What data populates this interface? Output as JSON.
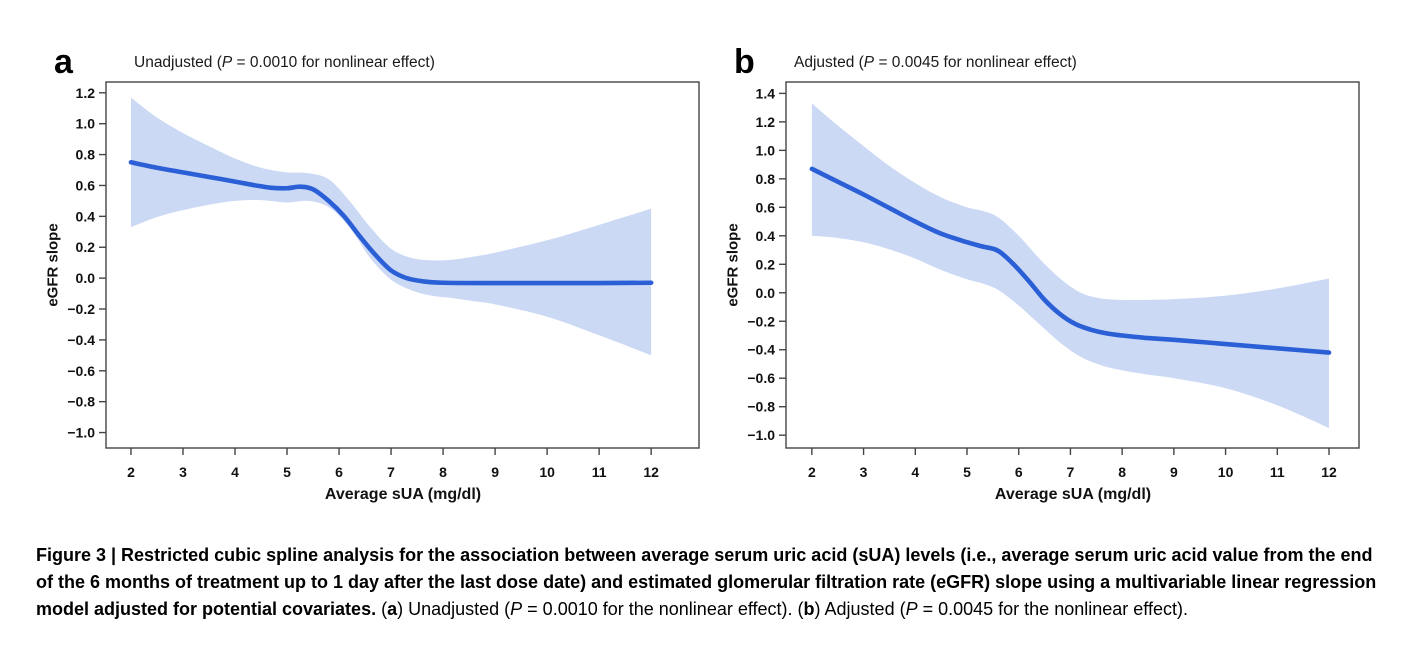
{
  "figure": {
    "panels": [
      {
        "letter": "a",
        "title_segments": [
          {
            "t": "Unadjusted ("
          },
          {
            "t": "P",
            "i": true
          },
          {
            "t": " = 0.0010 for nonlinear effect)"
          }
        ]
      },
      {
        "letter": "b",
        "title_segments": [
          {
            "t": "Adjusted ("
          },
          {
            "t": "P",
            "i": true
          },
          {
            "t": " = 0.0045 for nonlinear effect)"
          }
        ]
      }
    ],
    "caption_segments": [
      {
        "t": "Figure 3 | Restricted cubic spline analysis for the association between average serum uric acid (sUA) levels (i.e., average serum uric acid value from the end of the 6 months of treatment up to 1 day after the last dose date) and estimated glomerular filtration rate (eGFR) slope using a multivariable linear regression model adjusted for potential covariates.",
        "b": true
      },
      {
        "t": " ("
      },
      {
        "t": "a",
        "b": true
      },
      {
        "t": ") Unadjusted ("
      },
      {
        "t": "P",
        "i": true
      },
      {
        "t": " = 0.0010 for the nonlinear effect). ("
      },
      {
        "t": "b",
        "b": true
      },
      {
        "t": ") Adjusted ("
      },
      {
        "t": "P",
        "i": true
      },
      {
        "t": " = 0.0045 for the nonlinear effect)."
      }
    ]
  },
  "chart_data": [
    {
      "type": "line",
      "panel": "a",
      "title": "Unadjusted (P = 0.0010 for nonlinear effect)",
      "xlabel": "Average sUA (mg/dl)",
      "ylabel": "eGFR slope",
      "grid": false,
      "legend_position": "none",
      "xlim": [
        1.52,
        12.92
      ],
      "ylim": [
        -1.1,
        1.27
      ],
      "xticks": [
        2,
        3,
        4,
        5,
        6,
        7,
        8,
        9,
        10,
        11,
        12
      ],
      "xtick_labels": [
        "2",
        "3",
        "4",
        "5",
        "6",
        "7",
        "8",
        "9",
        "10",
        "11",
        "12"
      ],
      "yticks": [
        1.2,
        1.0,
        0.8,
        0.6,
        0.4,
        0.2,
        0.0,
        -0.2,
        -0.4,
        -0.6,
        -0.8,
        -1.0
      ],
      "ytick_labels": [
        "1.2",
        "1.0",
        "0.8",
        "0.6",
        "0.4",
        "0.2",
        "0.0",
        "−0.2",
        "−0.4",
        "−0.6",
        "−0.8",
        "−1.0"
      ],
      "series": [
        {
          "name": "restricted cubic spline estimate",
          "x": [
            2,
            2.5,
            3,
            3.5,
            4,
            4.4,
            4.7,
            5.0,
            5.25,
            5.5,
            5.8,
            6.1,
            6.4,
            6.7,
            7.0,
            7.3,
            7.6,
            8,
            9,
            10,
            11,
            12
          ],
          "y": [
            0.75,
            0.715,
            0.685,
            0.655,
            0.625,
            0.6,
            0.585,
            0.582,
            0.592,
            0.575,
            0.5,
            0.4,
            0.27,
            0.15,
            0.05,
            0.0,
            -0.02,
            -0.03,
            -0.032,
            -0.032,
            -0.032,
            -0.03
          ]
        }
      ],
      "band": {
        "name": "95% confidence interval",
        "x": [
          2,
          2.5,
          3,
          3.5,
          4,
          4.5,
          5,
          5.4,
          5.8,
          6.2,
          6.6,
          7,
          7.4,
          7.8,
          8.2,
          8.6,
          9,
          10,
          11,
          12
        ],
        "upper": [
          1.17,
          1.04,
          0.94,
          0.855,
          0.775,
          0.715,
          0.685,
          0.68,
          0.64,
          0.5,
          0.33,
          0.19,
          0.13,
          0.115,
          0.12,
          0.14,
          0.165,
          0.245,
          0.345,
          0.45
        ],
        "lower": [
          0.33,
          0.395,
          0.44,
          0.475,
          0.5,
          0.505,
          0.49,
          0.5,
          0.46,
          0.33,
          0.13,
          -0.01,
          -0.08,
          -0.115,
          -0.13,
          -0.15,
          -0.17,
          -0.25,
          -0.37,
          -0.5
        ]
      },
      "colors": {
        "line": "#2b5fd6",
        "band": "#ccd9f5",
        "axis": "#444444"
      }
    },
    {
      "type": "line",
      "panel": "b",
      "title": "Adjusted (P = 0.0045 for nonlinear effect)",
      "xlabel": "Average sUA (mg/dl)",
      "ylabel": "eGFR slope",
      "grid": false,
      "legend_position": "none",
      "xlim": [
        1.5,
        12.58
      ],
      "ylim": [
        -1.09,
        1.48
      ],
      "xticks": [
        2,
        3,
        4,
        5,
        6,
        7,
        8,
        9,
        10,
        11,
        12
      ],
      "xtick_labels": [
        "2",
        "3",
        "4",
        "5",
        "6",
        "7",
        "8",
        "9",
        "10",
        "11",
        "12"
      ],
      "yticks": [
        1.4,
        1.2,
        1.0,
        0.8,
        0.6,
        0.4,
        0.2,
        0.0,
        -0.2,
        -0.4,
        -0.6,
        -0.8,
        -1.0
      ],
      "ytick_labels": [
        "1.4",
        "1.2",
        "1.0",
        "0.8",
        "0.6",
        "0.4",
        "0.2",
        "0.0",
        "−0.2",
        "−0.4",
        "−0.6",
        "−0.8",
        "−1.0"
      ],
      "series": [
        {
          "name": "restricted cubic spline estimate",
          "x": [
            2,
            2.5,
            3,
            3.5,
            4,
            4.5,
            5,
            5.3,
            5.6,
            5.9,
            6.2,
            6.5,
            6.8,
            7.1,
            7.4,
            7.7,
            8,
            8.5,
            9,
            10,
            11,
            12
          ],
          "y": [
            0.87,
            0.78,
            0.69,
            0.595,
            0.5,
            0.415,
            0.355,
            0.325,
            0.295,
            0.2,
            0.08,
            -0.05,
            -0.15,
            -0.22,
            -0.26,
            -0.285,
            -0.3,
            -0.318,
            -0.33,
            -0.36,
            -0.39,
            -0.42
          ]
        }
      ],
      "band": {
        "name": "95% confidence interval",
        "x": [
          2,
          2.5,
          3,
          3.5,
          4,
          4.5,
          5,
          5.3,
          5.6,
          6,
          6.4,
          6.8,
          7.2,
          7.6,
          8,
          8.5,
          9,
          10,
          11,
          12
        ],
        "upper": [
          1.33,
          1.175,
          1.03,
          0.89,
          0.77,
          0.67,
          0.6,
          0.575,
          0.53,
          0.4,
          0.24,
          0.1,
          0.0,
          -0.04,
          -0.05,
          -0.05,
          -0.045,
          -0.02,
          0.03,
          0.1
        ],
        "lower": [
          0.4,
          0.385,
          0.355,
          0.305,
          0.24,
          0.16,
          0.095,
          0.065,
          0.02,
          -0.09,
          -0.22,
          -0.35,
          -0.45,
          -0.51,
          -0.545,
          -0.575,
          -0.6,
          -0.67,
          -0.79,
          -0.95
        ]
      },
      "colors": {
        "line": "#2b5fd6",
        "band": "#ccd9f5",
        "axis": "#444444"
      }
    }
  ]
}
